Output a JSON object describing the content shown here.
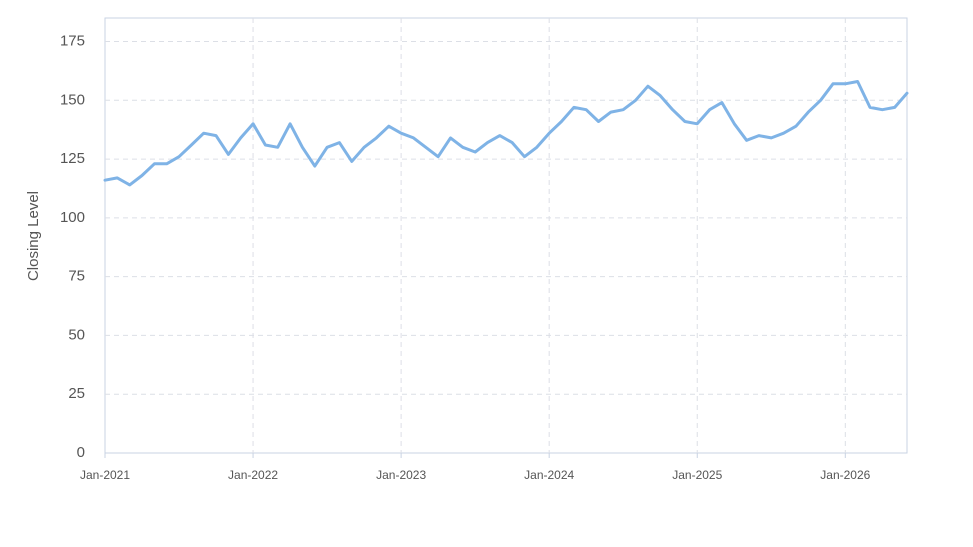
{
  "chart_data": {
    "type": "line",
    "y_label": "Closing Level",
    "x": [
      "2021-01",
      "2021-02",
      "2021-03",
      "2021-04",
      "2021-05",
      "2021-06",
      "2021-07",
      "2021-08",
      "2021-09",
      "2021-10",
      "2021-11",
      "2021-12",
      "2022-01",
      "2022-02",
      "2022-03",
      "2022-04",
      "2022-05",
      "2022-06",
      "2022-07",
      "2022-08",
      "2022-09",
      "2022-10",
      "2022-11",
      "2022-12",
      "2023-01",
      "2023-02",
      "2023-03",
      "2023-04",
      "2023-05",
      "2023-06",
      "2023-07",
      "2023-08",
      "2023-09",
      "2023-10",
      "2023-11",
      "2023-12",
      "2024-01",
      "2024-02",
      "2024-03",
      "2024-04",
      "2024-05",
      "2024-06",
      "2024-07",
      "2024-08",
      "2024-09",
      "2024-10",
      "2024-11",
      "2024-12",
      "2025-01",
      "2025-02",
      "2025-03",
      "2025-04",
      "2025-05",
      "2025-06",
      "2025-07",
      "2025-08",
      "2025-09",
      "2025-10",
      "2025-11",
      "2025-12",
      "2026-01",
      "2026-02",
      "2026-03",
      "2026-04",
      "2026-05",
      "2026-06"
    ],
    "series": [
      {
        "color": "#7fb3e6",
        "values": [
          116,
          117,
          114,
          118,
          123,
          123,
          126,
          131,
          136,
          135,
          127,
          134,
          140,
          131,
          130,
          140,
          130,
          122,
          130,
          132,
          124,
          130,
          134,
          139,
          136,
          134,
          130,
          126,
          134,
          130,
          128,
          132,
          135,
          132,
          126,
          130,
          136,
          141,
          147,
          146,
          141,
          145,
          146,
          150,
          156,
          152,
          146,
          141,
          140,
          146,
          149,
          140,
          133,
          135,
          134,
          136,
          139,
          145,
          150,
          157,
          157,
          158,
          147,
          146,
          147,
          153
        ]
      }
    ],
    "xlim": [
      "2021-01",
      "2026-06"
    ],
    "xticks": [
      {
        "value": "2021-01",
        "label": "Jan-2021"
      },
      {
        "value": "2022-01",
        "label": "Jan-2022"
      },
      {
        "value": "2023-01",
        "label": "Jan-2023"
      },
      {
        "value": "2024-01",
        "label": "Jan-2024"
      },
      {
        "value": "2025-01",
        "label": "Jan-2025"
      },
      {
        "value": "2026-01",
        "label": "Jan-2026"
      }
    ],
    "ylim": [
      0,
      185
    ],
    "yticks": [
      0,
      25,
      50,
      75,
      100,
      125,
      150,
      175
    ],
    "grid": true
  }
}
